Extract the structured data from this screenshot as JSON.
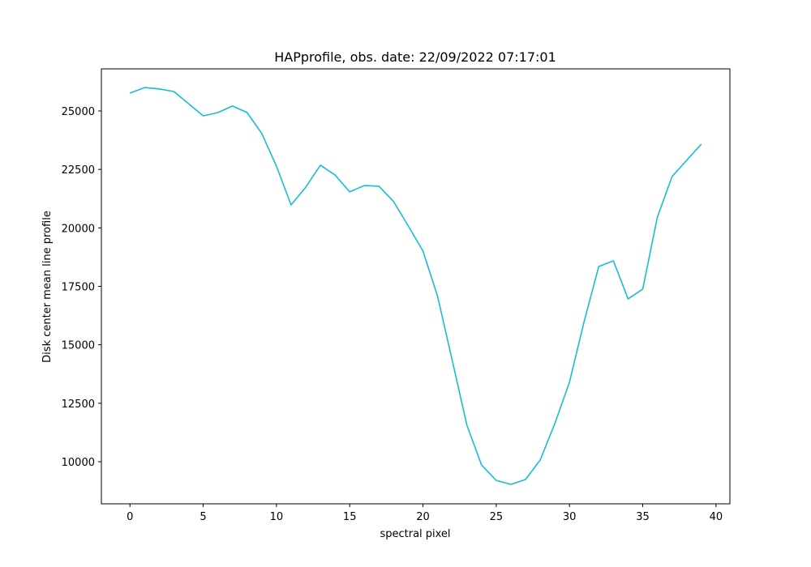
{
  "chart_data": {
    "type": "line",
    "title": "HAPprofile, obs. date: 22/09/2022 07:17:01",
    "x_label": "spectral pixel",
    "y_label": "Disk center mean line profile",
    "x": [
      0,
      1,
      2,
      3,
      4,
      5,
      6,
      7,
      8,
      9,
      10,
      11,
      12,
      13,
      14,
      15,
      16,
      17,
      18,
      19,
      20,
      21,
      22,
      23,
      24,
      25,
      26,
      27,
      28,
      29,
      30,
      31,
      32,
      33,
      34,
      35,
      36,
      37,
      38,
      39
    ],
    "series": [
      {
        "color": "#17becf",
        "values": [
          25760,
          26000,
          25940,
          25830,
          25310,
          24790,
          24930,
          25210,
          24930,
          24030,
          22640,
          20980,
          21740,
          22680,
          22260,
          21540,
          21810,
          21780,
          21120,
          20080,
          19010,
          17070,
          14330,
          11560,
          9860,
          9200,
          9030,
          9240,
          10070,
          11630,
          13400,
          15990,
          18350,
          18590,
          16960,
          17380,
          20460,
          22190,
          22890,
          23580
        ]
      }
    ],
    "xlim": [
      -1.95,
      40.95
    ],
    "ylim": [
      8200,
      26800
    ],
    "xticks": [
      0,
      5,
      10,
      15,
      20,
      25,
      30,
      35,
      40
    ],
    "yticks": [
      10000,
      12500,
      15000,
      17500,
      20000,
      22500,
      25000
    ],
    "grid": false
  }
}
